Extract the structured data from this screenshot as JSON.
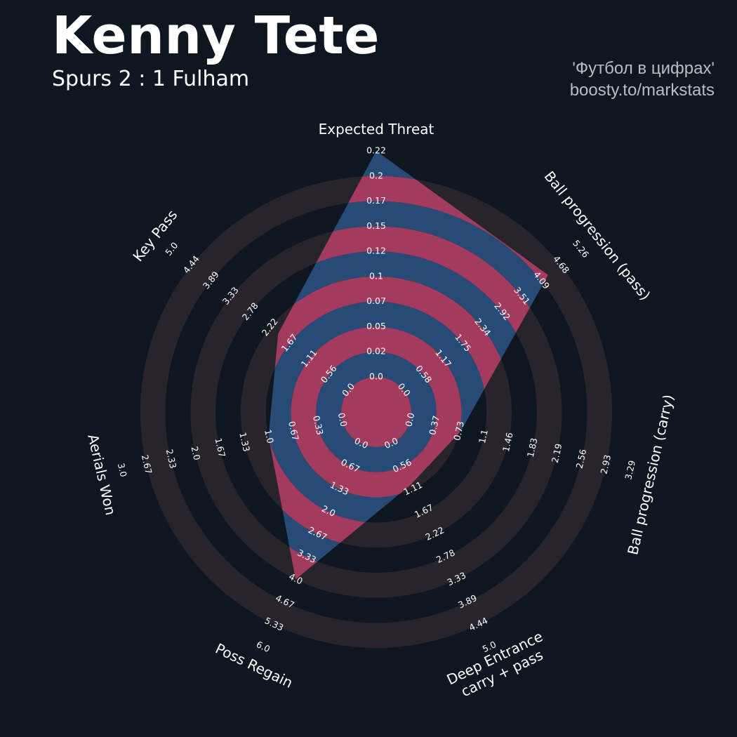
{
  "header": {
    "title": "Kenny Tete",
    "subtitle": "Spurs 2 : 1 Fulham"
  },
  "credits": {
    "line1": "'Футбол в цифрах'",
    "line2": "boosty.to/markstats"
  },
  "colors": {
    "background": "#0e1720",
    "ring_outer": "#28242b",
    "ring_outer_alt": "#0e1720",
    "ring_inner": "#a33b5e",
    "ring_inner_alt": "#274a77",
    "text": "#ffffff"
  },
  "chart_data": {
    "type": "radar",
    "title": "Kenny Tete",
    "subtitle": "Spurs 2 : 1 Fulham",
    "axes": [
      {
        "label": "Expected Threat",
        "min": 0,
        "max": 0.22,
        "value": 0.22,
        "ticks": [
          "0.0",
          "0.02",
          "0.05",
          "0.07",
          "0.1",
          "0.12",
          "0.15",
          "0.17",
          "0.2",
          "0.22"
        ]
      },
      {
        "label": "Ball progression (pass)",
        "min": 0,
        "max": 5.26,
        "value": 4.3,
        "ticks": [
          "0.0",
          "0.58",
          "1.17",
          "1.75",
          "2.34",
          "2.92",
          "3.51",
          "4.09",
          "4.68",
          "5.26"
        ]
      },
      {
        "label": "Ball progression (carry)",
        "min": 0,
        "max": 3.29,
        "value": 0.75,
        "ticks": [
          "0.0",
          "0.37",
          "0.73",
          "1.1",
          "1.46",
          "1.83",
          "2.19",
          "2.56",
          "2.93",
          "3.29"
        ]
      },
      {
        "label": "Deep Entrance\ncarry + pass",
        "min": 0,
        "max": 5.0,
        "value": 1.0,
        "ticks": [
          "0.0",
          "0.56",
          "1.11",
          "1.67",
          "2.22",
          "2.78",
          "3.33",
          "3.89",
          "4.44",
          "5.0"
        ]
      },
      {
        "label": "Poss Regain",
        "min": 0,
        "max": 6.0,
        "value": 4.0,
        "ticks": [
          "0.0",
          "0.67",
          "1.33",
          "2.0",
          "2.67",
          "3.33",
          "4.0",
          "4.67",
          "5.33",
          "6.0"
        ]
      },
      {
        "label": "Aerials Won",
        "min": 0,
        "max": 3.0,
        "value": 1.0,
        "ticks": [
          "0.0",
          "0.33",
          "0.67",
          "1.0",
          "1.33",
          "1.67",
          "2.0",
          "2.33",
          "2.67",
          "3.0"
        ]
      },
      {
        "label": "Key Pass",
        "min": 0,
        "max": 5.0,
        "value": 2.0,
        "ticks": [
          "0.0",
          "0.56",
          "1.11",
          "1.67",
          "2.22",
          "2.78",
          "3.33",
          "3.89",
          "4.44",
          "5.0"
        ]
      }
    ]
  }
}
